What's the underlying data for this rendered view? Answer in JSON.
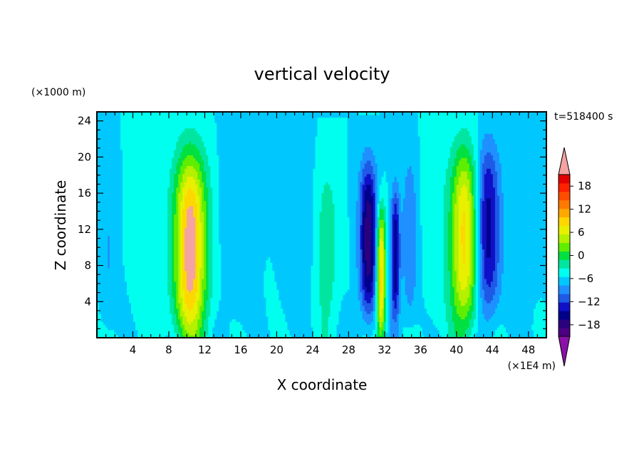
{
  "chart_data": {
    "type": "heatmap",
    "title": "vertical velocity",
    "xlabel": "X coordinate",
    "ylabel": "Z coordinate",
    "x_unit": "(×1E4 m)",
    "y_unit": "(×1000 m)",
    "time_label": "t=518400 s",
    "xlim": [
      0,
      50
    ],
    "ylim": [
      0,
      25
    ],
    "x_ticks": [
      4,
      8,
      12,
      16,
      20,
      24,
      28,
      32,
      36,
      40,
      44,
      48
    ],
    "y_ticks": [
      4,
      8,
      12,
      16,
      20,
      24
    ],
    "colorbar": {
      "min": -21,
      "max": 21,
      "step": 3,
      "tick_values": [
        18,
        12,
        6,
        0,
        -6,
        -12,
        -18
      ],
      "tick_labels": [
        "18",
        "12",
        "6",
        "0",
        "−6",
        "−12",
        "−18"
      ],
      "colors": [
        "#4b0082",
        "#2a007f",
        "#00008b",
        "#1010c8",
        "#1e5ae6",
        "#1e90ff",
        "#00c8ff",
        "#00ffee",
        "#00e6a0",
        "#00e040",
        "#60ee00",
        "#b4f000",
        "#e8f000",
        "#ffd700",
        "#ffa800",
        "#ff7a00",
        "#ff4d00",
        "#ff2000",
        "#e00000"
      ],
      "over_color": "#f4a2a2",
      "under_color": "#8a10a8"
    },
    "features": [
      {
        "x": 10.4,
        "z_center": 10,
        "z_half": 10.5,
        "width": 1.8,
        "amp": 23
      },
      {
        "x": 30.2,
        "z_center": 11,
        "z_half": 8.5,
        "width": 1.0,
        "amp": -17
      },
      {
        "x": 31.6,
        "z_center": 7,
        "z_half": 7.5,
        "width": 0.5,
        "amp": 21
      },
      {
        "x": 33.2,
        "z_center": 9,
        "z_half": 7.5,
        "width": 0.5,
        "amp": -14
      },
      {
        "x": 34.8,
        "z_center": 11,
        "z_half": 9.0,
        "width": 0.8,
        "amp": -6
      },
      {
        "x": 40.9,
        "z_center": 11,
        "z_half": 10.0,
        "width": 1.6,
        "amp": 19
      },
      {
        "x": 43.4,
        "z_center": 12,
        "z_half": 9.5,
        "width": 1.4,
        "amp": -14
      },
      {
        "x": 25.6,
        "z_center": 10,
        "z_half": 9.0,
        "width": 1.2,
        "amp": 5
      },
      {
        "x": 22.3,
        "z_center": 12,
        "z_half": 10.0,
        "width": 1.5,
        "amp": -3
      },
      {
        "x": 1.2,
        "z_center": 10,
        "z_half": 10.0,
        "width": 0.9,
        "amp": -3
      },
      {
        "x": 15.5,
        "z_center": 12,
        "z_half": 12.0,
        "width": 2.0,
        "amp": -2
      },
      {
        "x": 5.5,
        "z_center": 12,
        "z_half": 12.0,
        "width": 1.5,
        "amp": 2
      },
      {
        "x": 37.5,
        "z_center": 12,
        "z_half": 12.0,
        "width": 1.2,
        "amp": 2
      },
      {
        "x": 47.5,
        "z_center": 12,
        "z_half": 12.0,
        "width": 1.5,
        "amp": -2
      }
    ]
  }
}
